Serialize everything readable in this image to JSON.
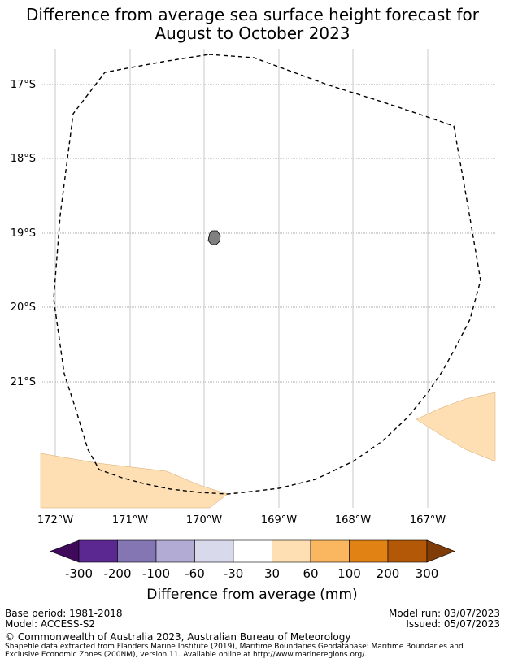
{
  "title": {
    "line1": "Difference from average sea surface height forecast for",
    "line2": "August to October 2023"
  },
  "map": {
    "lat_labels": [
      "17°S",
      "18°S",
      "19°S",
      "20°S",
      "21°S"
    ],
    "lon_labels": [
      "172°W",
      "171°W",
      "170°W",
      "169°W",
      "168°W",
      "167°W"
    ],
    "grid": true,
    "boundary_style": "dashed",
    "island_color": "#808080",
    "anomaly_fill_color": "#fddfb3"
  },
  "colorbar": {
    "label": "Difference from average (mm)",
    "ticks": [
      "-300",
      "-200",
      "-100",
      "-60",
      "-30",
      "30",
      "60",
      "100",
      "200",
      "300"
    ],
    "colors": [
      "#3f0a5c",
      "#5a2890",
      "#8475b3",
      "#b2abd3",
      "#d8daeb",
      "#ffffff",
      "#fddfb3",
      "#fbb660",
      "#e08214",
      "#b35806",
      "#7f3b08"
    ]
  },
  "footer": {
    "base_period": "Base period: 1981-2018",
    "model": "Model: ACCESS-S2",
    "model_run": "Model run: 03/07/2023",
    "issued": "Issued: 05/07/2023",
    "copyright": "© Commonwealth of Australia 2023, Australian Bureau of Meteorology",
    "shapefile_line1": "Shapefile data extracted from Flanders Marine Institute (2019), Maritime Boundaries Geodatabase: Maritime Boundaries and",
    "shapefile_line2": "Exclusive Economic Zones (200NM), version 11. Available online at http://www.marineregions.org/."
  }
}
